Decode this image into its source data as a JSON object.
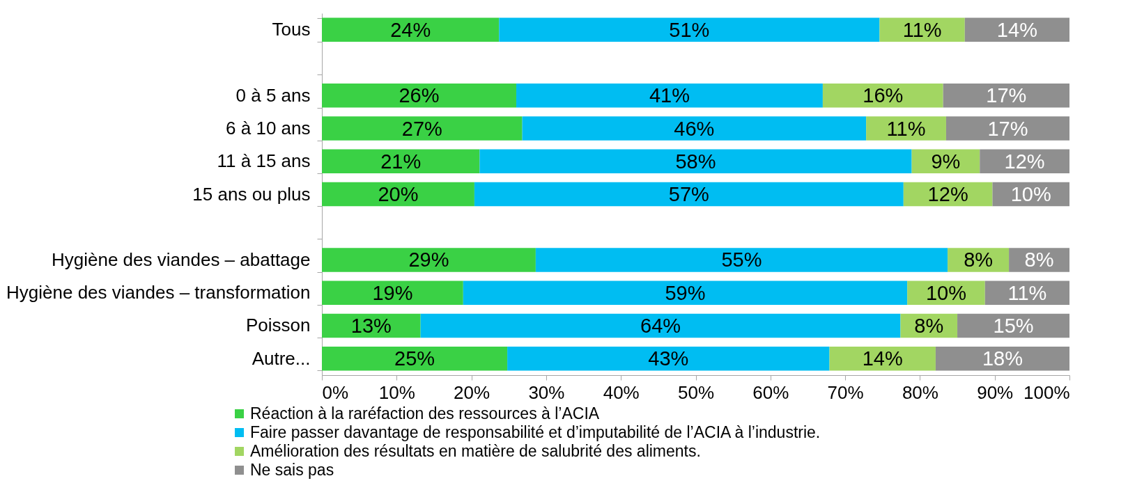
{
  "chart_data": {
    "type": "bar",
    "orientation": "horizontal",
    "stacked": true,
    "categories": [
      "Tous",
      null,
      "0 à 5 ans",
      "6 à 10 ans",
      "11 à 15 ans",
      "15 ans ou plus",
      null,
      "Hygiène des viandes – abattage",
      "Hygiène des viandes – transformation",
      "Poisson",
      "Autre..."
    ],
    "series": [
      {
        "name": "Réaction à la raréfaction des ressources à l’ACIA",
        "color": "#3ad145",
        "values": [
          23.7,
          null,
          26.0,
          26.8,
          21.1,
          20.4,
          null,
          28.6,
          18.9,
          13.2,
          24.8
        ],
        "value_labels": [
          "24%",
          null,
          "26%",
          "27%",
          "21%",
          "20%",
          null,
          "29%",
          "19%",
          "13%",
          "25%"
        ]
      },
      {
        "name": "Faire passer davantage de responsabilité et d’imputabilité de l’ACIA à l’industrie.",
        "color": "#00bdf2",
        "values": [
          50.9,
          null,
          41.0,
          46.0,
          57.8,
          57.4,
          null,
          55.1,
          59.4,
          64.2,
          43.1
        ],
        "value_labels": [
          "51%",
          null,
          "41%",
          "46%",
          "58%",
          "57%",
          null,
          "55%",
          "59%",
          "64%",
          "43%"
        ]
      },
      {
        "name": "Amélioration des résultats en matière de salubrité des aliments.",
        "color": "#a2d662",
        "values": [
          11.4,
          null,
          16.1,
          10.7,
          9.1,
          11.9,
          null,
          8.2,
          10.4,
          7.6,
          14.2
        ],
        "value_labels": [
          "11%",
          null,
          "16%",
          "11%",
          "9%",
          "12%",
          null,
          "8%",
          "10%",
          "8%",
          "14%"
        ]
      },
      {
        "name": "Ne sais pas",
        "color": "#8f8f8f",
        "values": [
          14.0,
          null,
          16.9,
          16.5,
          12.0,
          10.3,
          null,
          8.1,
          11.3,
          15.0,
          17.9
        ],
        "value_labels": [
          "14%",
          null,
          "17%",
          "17%",
          "12%",
          "10%",
          null,
          "8%",
          "11%",
          "15%",
          "18%"
        ]
      }
    ],
    "xlim": [
      0,
      100
    ],
    "xticks": [
      {
        "value": 0,
        "label": "0%"
      },
      {
        "value": 10,
        "label": "10%"
      },
      {
        "value": 20,
        "label": "20%"
      },
      {
        "value": 30,
        "label": "30%"
      },
      {
        "value": 40,
        "label": "40%"
      },
      {
        "value": 50,
        "label": "50%"
      },
      {
        "value": 60,
        "label": "60%"
      },
      {
        "value": 70,
        "label": "70%"
      },
      {
        "value": 80,
        "label": "80%"
      },
      {
        "value": 90,
        "label": "90%"
      },
      {
        "value": 100,
        "label": "100%"
      }
    ],
    "grid": false,
    "legend": "bottom"
  }
}
